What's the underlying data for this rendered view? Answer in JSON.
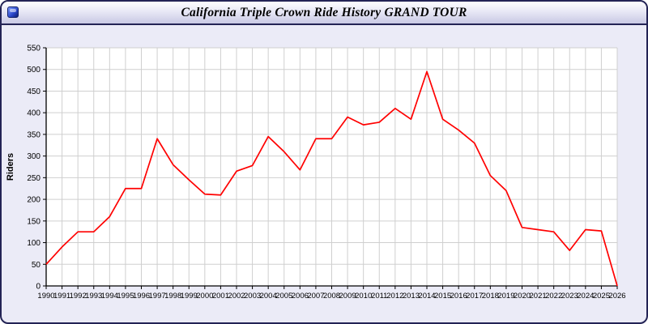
{
  "window": {
    "title": "California Triple Crown Ride History GRAND TOUR"
  },
  "colors": {
    "line": "#ff0000",
    "window_background": "#ebebf7",
    "plot_background": "#ffffff",
    "grid": "#cfcfcf",
    "axis": "#000000",
    "border": "#232355"
  },
  "chart_data": {
    "type": "line",
    "title": "California Triple Crown Ride History GRAND TOUR",
    "xlabel": "",
    "ylabel": "Riders",
    "ylim": [
      0,
      550
    ],
    "ytick_step": 50,
    "grid": true,
    "legend": "none",
    "line_color": "#ff0000",
    "x": [
      1990,
      1991,
      1992,
      1993,
      1994,
      1995,
      1996,
      1997,
      1998,
      1999,
      2000,
      2001,
      2002,
      2003,
      2004,
      2005,
      2006,
      2007,
      2008,
      2009,
      2010,
      2011,
      2012,
      2013,
      2014,
      2015,
      2016,
      2017,
      2018,
      2019,
      2020,
      2021,
      2022,
      2023,
      2024,
      2025,
      2026
    ],
    "series": [
      {
        "name": "Riders",
        "values": [
          50,
          90,
          125,
          125,
          160,
          225,
          225,
          340,
          280,
          245,
          212,
          210,
          265,
          278,
          345,
          310,
          268,
          340,
          340,
          390,
          372,
          378,
          410,
          385,
          495,
          385,
          360,
          330,
          255,
          220,
          135,
          130,
          125,
          82,
          130,
          127,
          0
        ]
      }
    ]
  }
}
